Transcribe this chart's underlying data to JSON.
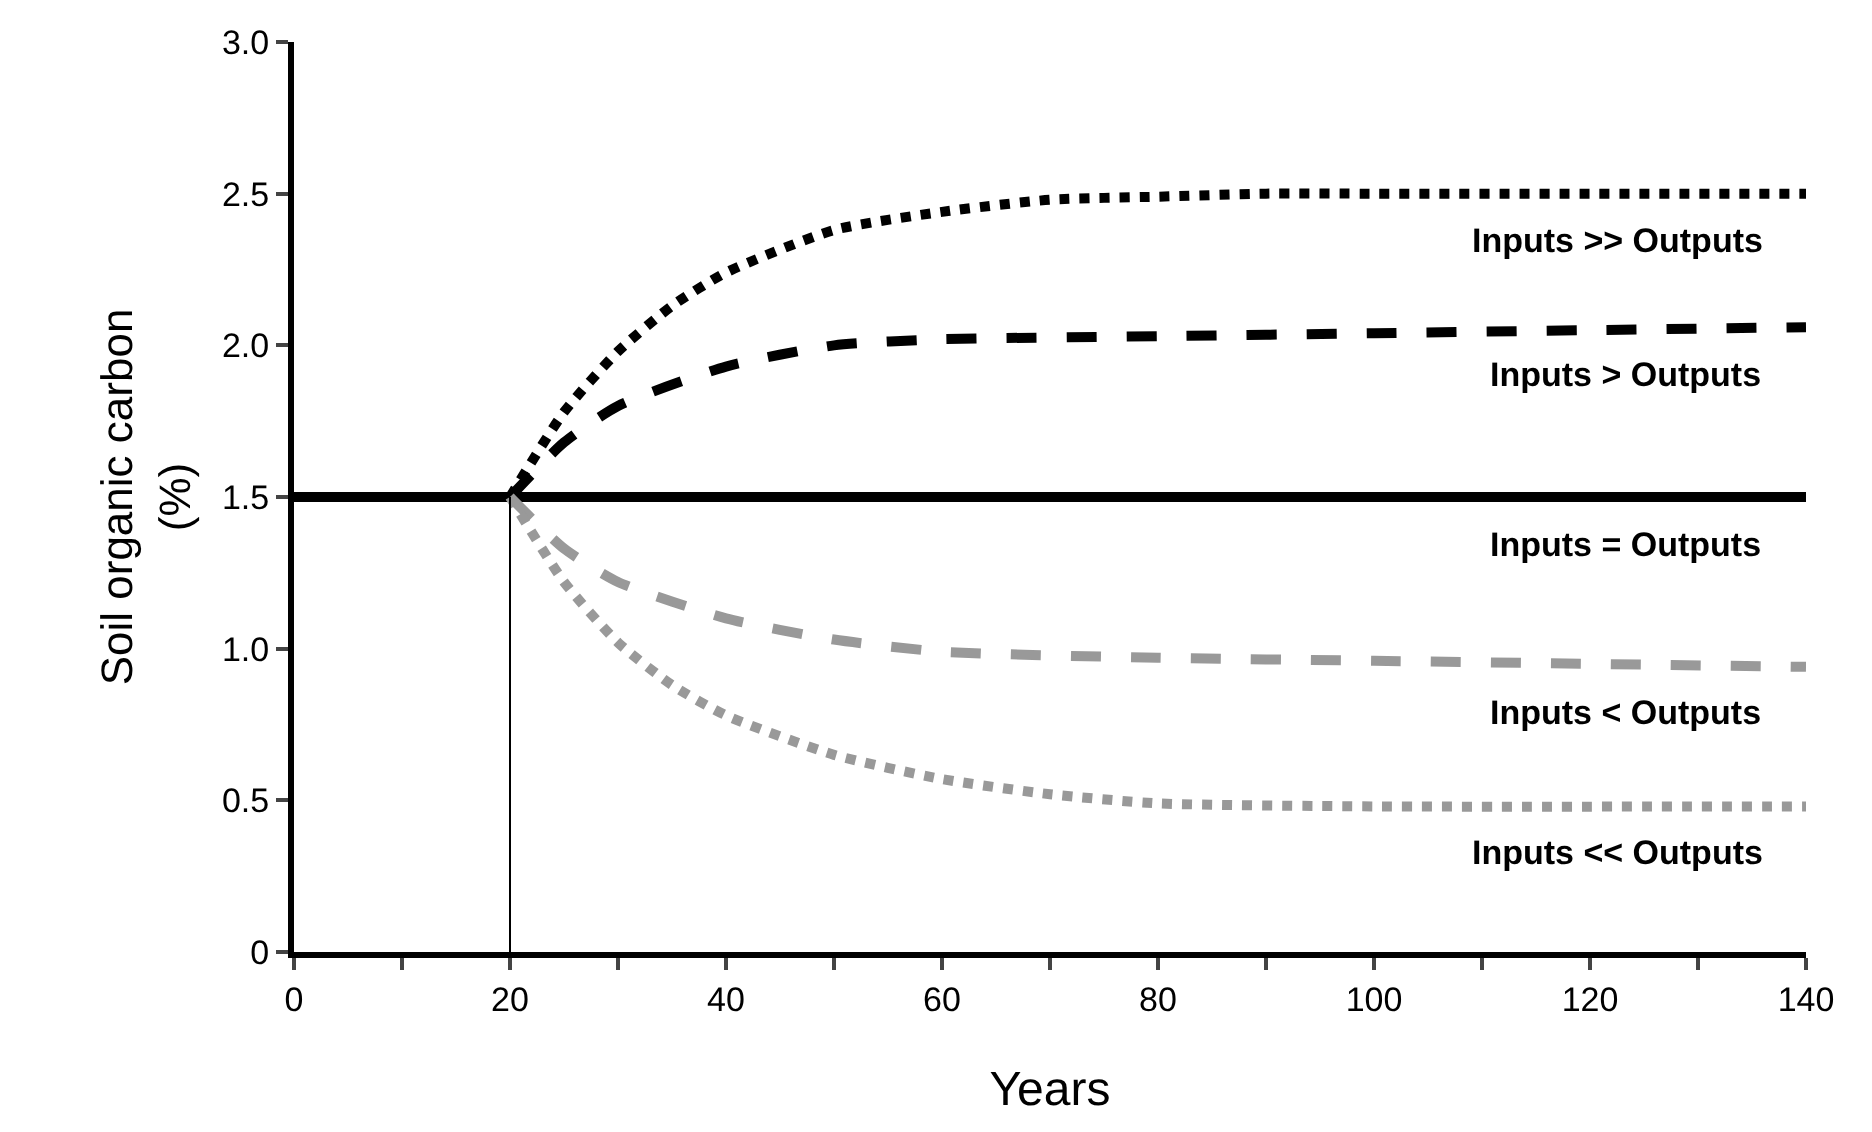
{
  "chart_data": {
    "type": "line",
    "xlabel": "Years",
    "ylabel": "Soil organic carbon\n(%)",
    "xlim": [
      0,
      140
    ],
    "ylim": [
      0,
      3.0
    ],
    "xticks": [
      0,
      {
        "value": 10,
        "label": null
      },
      20,
      {
        "value": 30,
        "label": null
      },
      40,
      {
        "value": 50,
        "label": null
      },
      60,
      {
        "value": 70,
        "label": null
      },
      80,
      {
        "value": 90,
        "label": null
      },
      100,
      {
        "value": 110,
        "label": null
      },
      120,
      {
        "value": 130,
        "label": null
      },
      140
    ],
    "yticks": [
      0,
      {
        "value": 0.5,
        "label": "0.5"
      },
      {
        "value": 1.0,
        "label": "1.0"
      },
      {
        "value": 1.5,
        "label": "1.5"
      },
      {
        "value": 2.0,
        "label": "2.0"
      },
      {
        "value": 2.5,
        "label": "2.5"
      },
      {
        "value": 3.0,
        "label": "3.0"
      }
    ],
    "legend": false,
    "series": [
      {
        "name": "Inputs >> Outputs",
        "color": "#000000",
        "line_style": "dotted",
        "x": [
          20,
          25,
          30,
          35,
          40,
          50,
          60,
          70,
          80,
          90,
          100,
          120,
          140
        ],
        "values": [
          1.5,
          1.78,
          1.98,
          2.13,
          2.24,
          2.38,
          2.44,
          2.48,
          2.49,
          2.5,
          2.5,
          2.5,
          2.5
        ]
      },
      {
        "name": "Inputs > Outputs",
        "color": "#000000",
        "line_style": "dashed",
        "x": [
          20,
          25,
          30,
          40,
          50,
          60,
          80,
          100,
          120,
          140
        ],
        "values": [
          1.5,
          1.68,
          1.8,
          1.93,
          2.0,
          2.02,
          2.03,
          2.04,
          2.05,
          2.06
        ]
      },
      {
        "name": "Inputs = Outputs",
        "color": "#000000",
        "line_style": "solid",
        "x": [
          0,
          140
        ],
        "values": [
          1.5,
          1.5
        ]
      },
      {
        "name": "Inputs < Outputs",
        "color": "#999999",
        "line_style": "dashed",
        "x": [
          20,
          25,
          30,
          40,
          50,
          60,
          80,
          100,
          120,
          140
        ],
        "values": [
          1.5,
          1.33,
          1.22,
          1.1,
          1.03,
          0.99,
          0.97,
          0.96,
          0.95,
          0.94
        ]
      },
      {
        "name": "Inputs << Outputs",
        "color": "#999999",
        "line_style": "dotted",
        "x": [
          20,
          25,
          30,
          35,
          40,
          50,
          60,
          70,
          80,
          100,
          140
        ],
        "values": [
          1.5,
          1.22,
          1.02,
          0.88,
          0.78,
          0.65,
          0.57,
          0.52,
          0.49,
          0.48,
          0.48
        ]
      },
      {
        "color": "#000000",
        "line_style": "solid",
        "x": [
          20,
          20
        ],
        "values": [
          0,
          1.5
        ]
      }
    ]
  }
}
